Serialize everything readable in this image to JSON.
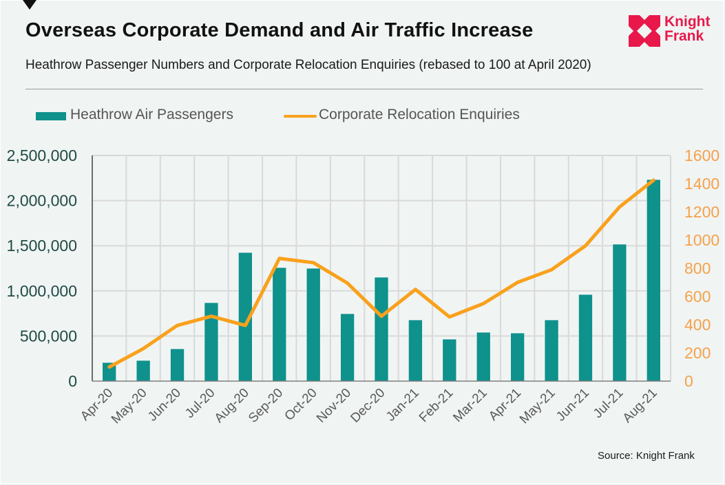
{
  "header": {
    "title": "Overseas Corporate Demand and Air  Traffic Increase",
    "subtitle": "Heathrow Passenger Numbers and Corporate Relocation Enquiries (rebased to 100 at April 2020)",
    "logo_line1": "Knight",
    "logo_line2": "Frank"
  },
  "footer": {
    "source": "Source: Knight Frank"
  },
  "colors": {
    "bar": "#0f918c",
    "line": "#f9a11c",
    "brand": "#e8194a",
    "left_axis_text": "#1f4a45",
    "right_axis_text": "#f5a14a"
  },
  "chart_data": {
    "type": "bar+line",
    "title": "Overseas Corporate Demand and Air  Traffic Increase",
    "subtitle": "Heathrow Passenger Numbers and Corporate Relocation Enquiries (rebased to 100 at April 2020)",
    "categories": [
      "Apr-20",
      "May-20",
      "Jun-20",
      "Jul-20",
      "Aug-20",
      "Sep-20",
      "Oct-20",
      "Nov-20",
      "Dec-20",
      "Jan-21",
      "Feb-21",
      "Mar-21",
      "Apr-21",
      "May-21",
      "Jun-21",
      "Jul-21",
      "Aug-21"
    ],
    "series": [
      {
        "name": "Heathrow Air Passengers",
        "type": "bar",
        "axis": "left",
        "values": [
          206000,
          229000,
          358000,
          869000,
          1425000,
          1258000,
          1250000,
          747000,
          1151000,
          678000,
          465000,
          541000,
          533000,
          678000,
          960000,
          1517000,
          2233000
        ]
      },
      {
        "name": "Corporate Relocation Enquiries",
        "type": "line",
        "axis": "right",
        "values": [
          100,
          230,
          395,
          460,
          395,
          870,
          840,
          695,
          460,
          650,
          455,
          550,
          700,
          790,
          960,
          1235,
          1425
        ]
      }
    ],
    "y_left": {
      "range": [
        0,
        2500000
      ],
      "ticks": [
        0,
        500000,
        1000000,
        1500000,
        2000000,
        2500000
      ],
      "tick_labels": [
        "0",
        "500,000",
        "1,000,000",
        "1,500,000",
        "2,000,000",
        "2,500,000"
      ]
    },
    "y_right": {
      "range": [
        0,
        1600
      ],
      "ticks": [
        0,
        200,
        400,
        600,
        800,
        1000,
        1200,
        1400,
        1600
      ],
      "tick_labels": [
        "0",
        "200",
        "400",
        "600",
        "800",
        "1000",
        "1200",
        "1400",
        "1600"
      ]
    },
    "xlabel": "",
    "ylabel": "",
    "grid": true,
    "legend": {
      "position": "top-left",
      "entries": [
        "Heathrow Air Passengers",
        "Corporate Relocation Enquiries"
      ]
    },
    "source": "Source: Knight Frank"
  }
}
